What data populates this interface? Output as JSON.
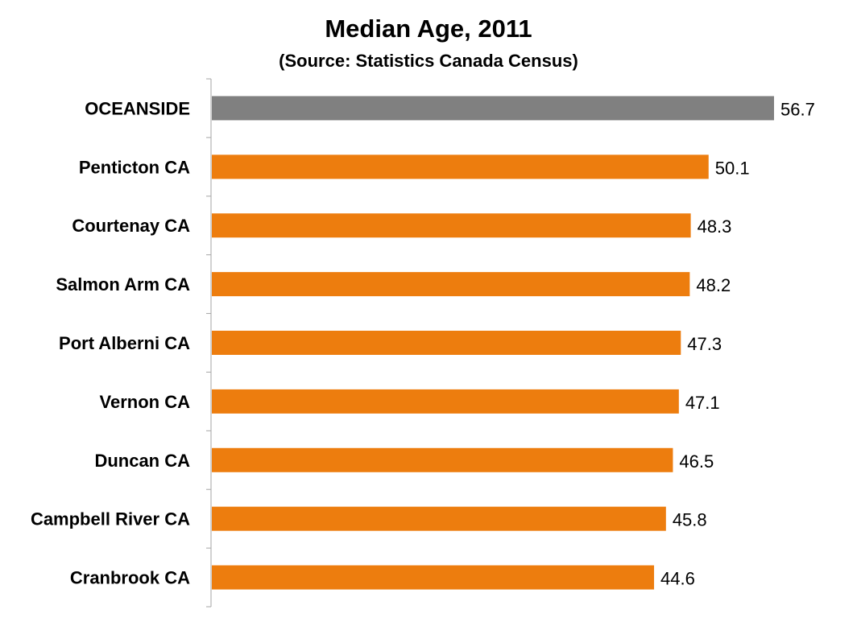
{
  "chart_data": {
    "type": "bar",
    "orientation": "horizontal",
    "title": "Median Age, 2011",
    "subtitle": "(Source: Statistics Canada Census)",
    "xlabel": "",
    "ylabel": "",
    "categories": [
      "OCEANSIDE",
      "Penticton CA",
      "Courtenay CA",
      "Salmon Arm CA",
      "Port Alberni CA",
      "Vernon CA",
      "Duncan CA",
      "Campbell River CA",
      "Cranbrook CA"
    ],
    "values": [
      56.7,
      50.1,
      48.3,
      48.2,
      47.3,
      47.1,
      46.5,
      45.8,
      44.6
    ],
    "data_labels": [
      "56.7",
      "50.1",
      "48.3",
      "48.2",
      "47.3",
      "47.1",
      "46.5",
      "45.8",
      "44.6"
    ],
    "xlim": [
      0,
      56.7
    ],
    "grid": false,
    "legend": "none",
    "colors": {
      "highlight": "#808080",
      "default": "#ED7D0E",
      "axis": "#A6A6A6",
      "text": "#000000"
    },
    "highlight_index": 0
  }
}
